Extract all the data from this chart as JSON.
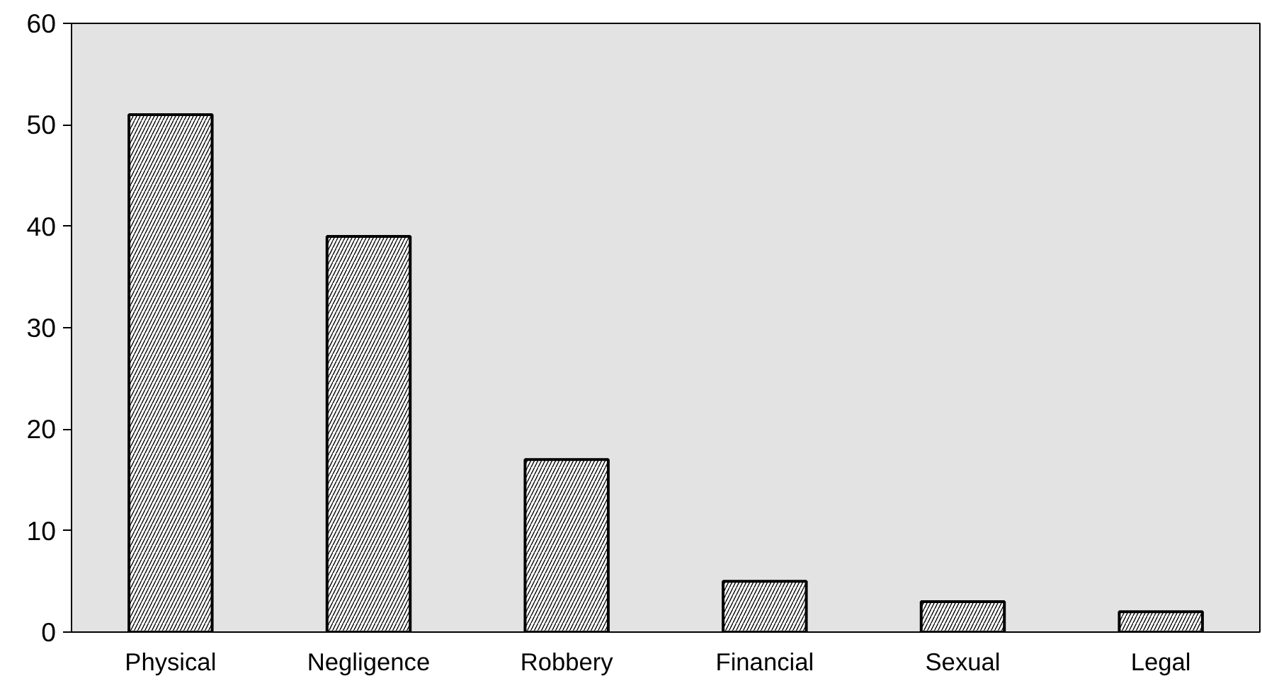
{
  "chart_data": {
    "type": "bar",
    "categories": [
      "Physical",
      "Negligence",
      "Robbery",
      "Financial",
      "Sexual",
      "Legal"
    ],
    "values": [
      51,
      39,
      17,
      5,
      3,
      2
    ],
    "color": "#ffffff",
    "ylim": [
      0,
      60
    ],
    "yticks": [
      0,
      10,
      20,
      30,
      40,
      50,
      60
    ],
    "grid": false
  }
}
